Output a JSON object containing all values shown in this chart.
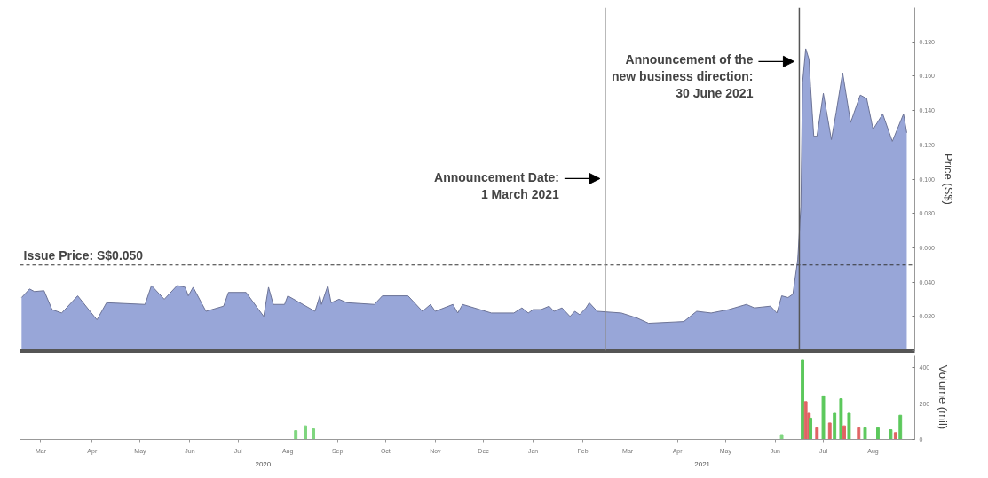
{
  "chart_data": [
    {
      "type": "area",
      "ylabel": "Price (S$)",
      "xlim": [
        "2020-03-01",
        "2021-09-10"
      ],
      "ylim": [
        0,
        0.2
      ],
      "yticks": [
        {
          "value": 0,
          "label": null
        },
        {
          "value": 0.02,
          "label": "0.020"
        },
        {
          "value": 0.04,
          "label": "0.040"
        },
        {
          "value": 0.06,
          "label": "0.060"
        },
        {
          "value": 0.08,
          "label": "0.080"
        },
        {
          "value": 0.1,
          "label": "0.100"
        },
        {
          "value": 0.12,
          "label": "0.120"
        },
        {
          "value": 0.14,
          "label": "0.140"
        },
        {
          "value": 0.16,
          "label": "0.160"
        },
        {
          "value": 0.18,
          "label": "0.180"
        }
      ],
      "tick_labels": "y",
      "grid": false,
      "series": [
        {
          "color": "#98a6d8",
          "x": [
            "2020-03-02",
            "2020-03-07",
            "2020-03-10",
            "2020-03-16",
            "2020-03-21",
            "2020-03-27",
            "2020-04-06",
            "2020-04-18",
            "2020-04-24",
            "2020-05-18",
            "2020-05-22",
            "2020-05-30",
            "2020-06-07",
            "2020-06-12",
            "2020-06-14",
            "2020-06-17",
            "2020-06-25",
            "2020-07-06",
            "2020-07-09",
            "2020-07-20",
            "2020-07-31",
            "2020-08-03",
            "2020-08-06",
            "2020-08-13",
            "2020-08-15",
            "2020-09-01",
            "2020-09-04",
            "2020-09-05",
            "2020-09-09",
            "2020-09-11",
            "2020-09-16",
            "2020-09-21",
            "2020-10-08",
            "2020-10-13",
            "2020-10-29",
            "2020-11-07",
            "2020-11-12",
            "2020-11-15",
            "2020-11-26",
            "2020-11-29",
            "2020-12-02",
            "2020-12-20",
            "2021-01-03",
            "2021-01-08",
            "2021-01-12",
            "2021-01-15",
            "2021-01-20",
            "2021-01-25",
            "2021-01-28",
            "2021-02-02",
            "2021-02-07",
            "2021-02-10",
            "2021-02-13",
            "2021-02-17",
            "2021-02-19",
            "2021-02-24",
            "2021-03-11",
            "2021-03-21",
            "2021-03-28",
            "2021-04-19",
            "2021-04-27",
            "2021-05-06",
            "2021-05-17",
            "2021-05-28",
            "2021-06-02",
            "2021-06-12",
            "2021-06-16",
            "2021-06-19",
            "2021-06-23",
            "2021-06-26",
            "2021-06-29",
            "2021-07-01",
            "2021-07-02",
            "2021-07-04",
            "2021-07-06",
            "2021-07-07",
            "2021-07-09",
            "2021-07-11",
            "2021-07-15",
            "2021-07-20",
            "2021-07-23",
            "2021-07-27",
            "2021-08-01",
            "2021-08-07",
            "2021-08-11",
            "2021-08-15",
            "2021-08-21",
            "2021-08-27",
            "2021-09-03",
            "2021-09-05"
          ],
          "values": [
            0.031,
            0.036,
            0.0345,
            0.035,
            0.024,
            0.022,
            0.032,
            0.018,
            0.028,
            0.027,
            0.038,
            0.03,
            0.038,
            0.037,
            0.032,
            0.037,
            0.023,
            0.026,
            0.034,
            0.034,
            0.02,
            0.037,
            0.027,
            0.027,
            0.032,
            0.023,
            0.032,
            0.027,
            0.038,
            0.028,
            0.03,
            0.028,
            0.027,
            0.032,
            0.032,
            0.023,
            0.027,
            0.023,
            0.027,
            0.022,
            0.027,
            0.022,
            0.022,
            0.025,
            0.022,
            0.024,
            0.024,
            0.026,
            0.023,
            0.025,
            0.02,
            0.023,
            0.021,
            0.025,
            0.028,
            0.023,
            0.022,
            0.019,
            0.016,
            0.017,
            0.023,
            0.022,
            0.024,
            0.027,
            0.025,
            0.026,
            0.022,
            0.032,
            0.031,
            0.033,
            0.053,
            0.084,
            0.156,
            0.176,
            0.17,
            0.154,
            0.125,
            0.125,
            0.15,
            0.123,
            0.139,
            0.162,
            0.133,
            0.149,
            0.147,
            0.129,
            0.138,
            0.122,
            0.138,
            0.127
          ]
        }
      ],
      "ref_lines": [
        {
          "axis": "y",
          "value": 0.05,
          "label": "Issue Price: S$0.050",
          "color": "#333333",
          "line_style": "dashed"
        },
        {
          "axis": "x",
          "value": "2021-03-01",
          "label": "Announcement Date:\n1 March 2021",
          "color": "#8a8a8a"
        },
        {
          "axis": "x",
          "value": "2021-06-30",
          "label": "Announcement of the\nnew business direction:\n30 June 2021",
          "color": "#555555"
        }
      ]
    },
    {
      "type": "bar",
      "ylabel": "Volume (mil)",
      "xlim": [
        "2020-03-01",
        "2021-09-10"
      ],
      "ylim": [
        0,
        470
      ],
      "yticks": [
        0,
        200,
        400
      ],
      "xticks": [
        {
          "value": "2020-03-14",
          "label": "Mar"
        },
        {
          "value": "2020-04-15",
          "label": "Apr"
        },
        {
          "value": "2020-05-15",
          "label": "May"
        },
        {
          "value": "2020-06-15",
          "label": "Jun"
        },
        {
          "value": "2020-07-15",
          "label": "Jul"
        },
        {
          "value": "2020-08-15",
          "label": "Aug"
        },
        {
          "value": "2020-09-15",
          "label": "Sep"
        },
        {
          "value": "2020-10-15",
          "label": "Oct"
        },
        {
          "value": "2020-11-15",
          "label": "Nov"
        },
        {
          "value": "2020-12-15",
          "label": "Dec"
        },
        {
          "value": "2021-01-15",
          "label": "Jan"
        },
        {
          "value": "2021-02-15",
          "label": "Feb"
        },
        {
          "value": "2021-03-15",
          "label": "Mar"
        },
        {
          "value": "2021-04-15",
          "label": "Apr"
        },
        {
          "value": "2021-05-15",
          "label": "May"
        },
        {
          "value": "2021-06-15",
          "label": "Jun"
        },
        {
          "value": "2021-07-15",
          "label": "Jul"
        },
        {
          "value": "2021-08-15",
          "label": "Aug"
        }
      ],
      "grid": false,
      "annotations": [
        "2020",
        "2021"
      ],
      "x": [
        "2020-08-20",
        "2020-08-26",
        "2020-08-31",
        "2021-06-19",
        "2021-07-02",
        "2021-07-04",
        "2021-07-06",
        "2021-07-07",
        "2021-07-11",
        "2021-07-15",
        "2021-07-19",
        "2021-07-22",
        "2021-07-26",
        "2021-07-28",
        "2021-07-31",
        "2021-08-06",
        "2021-08-10",
        "2021-08-18",
        "2021-08-26",
        "2021-08-29",
        "2021-09-01"
      ],
      "values": [
        49,
        76,
        59,
        27,
        443,
        211,
        146,
        119,
        65,
        243,
        92,
        146,
        227,
        76,
        146,
        65,
        65,
        65,
        54,
        38,
        135
      ],
      "colors": [
        "#7fd67f",
        "#7fd67f",
        "#7fd67f",
        "#7fd67f",
        "#5cc85c",
        "#e06464",
        "#e06464",
        "#5cc85c",
        "#e06464",
        "#5cc85c",
        "#e06464",
        "#5cc85c",
        "#5cc85c",
        "#e06464",
        "#5cc85c",
        "#e06464",
        "#5cc85c",
        "#5cc85c",
        "#5cc85c",
        "#e06464",
        "#5cc85c"
      ]
    }
  ]
}
